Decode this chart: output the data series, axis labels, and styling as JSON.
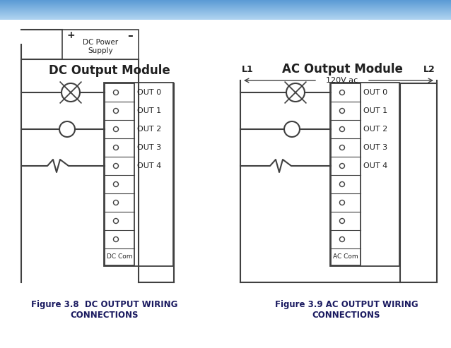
{
  "bg_color": "#ffffff",
  "top_bar_colors": [
    "#4a90c4",
    "#6aaee0",
    "#8ec4e8",
    "#b0d4f0"
  ],
  "dc_title": "DC Output Module",
  "ac_title": "AC Output Module",
  "dc_caption_line1": "Figure 3.8  DC OUTPUT WIRING",
  "dc_caption_line2": "CONNECTIONS",
  "ac_caption_line1": "Figure 3.9 AC OUTPUT WIRING",
  "ac_caption_line2": "CONNECTIONS",
  "out_labels": [
    "OUT 0",
    "OUT 1",
    "OUT 2",
    "OUT 3",
    "OUT 4"
  ],
  "dc_com_label": "DC Com",
  "ac_com_label": "AC Com",
  "l1_label": "L1",
  "l2_label": "L2",
  "v120_label": "120V ac",
  "ps_label": "DC Power\nSupply",
  "ps_plus": "+",
  "ps_minus": "–",
  "line_color": "#404040",
  "text_color": "#202020",
  "caption_color": "#1a1a60",
  "title_color": "#202020"
}
